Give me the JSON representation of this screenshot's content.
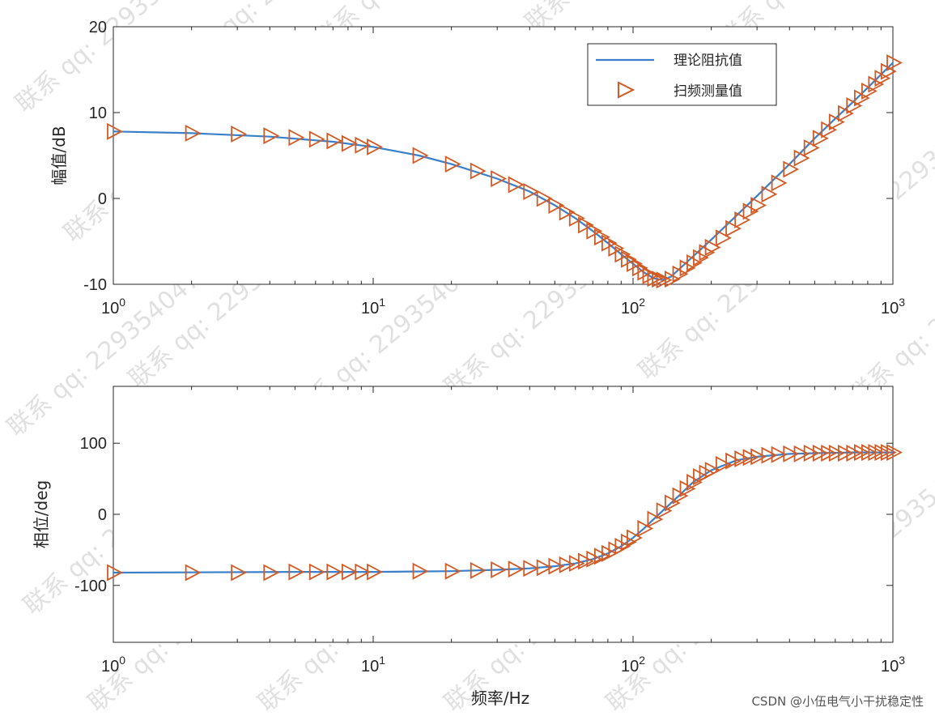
{
  "credit": "CSDN @小伍电气小干扰稳定性",
  "watermark": "联系 qq: 2293540475",
  "colors": {
    "theory": "#3a7fc8",
    "measure": "#d35a24",
    "axis": "#262626"
  },
  "chart_data": [
    {
      "type": "line",
      "ylabel": "幅值/dB",
      "xlabel": "",
      "xscale": "log",
      "xlim": [
        1,
        1000
      ],
      "ylim": [
        -10,
        20
      ],
      "xticks": [
        {
          "v": 1,
          "b": "10",
          "e": "0"
        },
        {
          "v": 10,
          "b": "10",
          "e": "1"
        },
        {
          "v": 100,
          "b": "10",
          "e": "2"
        },
        {
          "v": 1000,
          "b": "10",
          "e": "3"
        }
      ],
      "yticks": [
        {
          "v": 20,
          "t": "20"
        },
        {
          "v": 10,
          "t": "10"
        },
        {
          "v": 0,
          "t": "0"
        },
        {
          "v": -10,
          "t": "-10"
        }
      ],
      "legend": {
        "position": "top-right",
        "entries": [
          "理论阻抗值",
          "扫频测量值"
        ]
      },
      "series": [
        {
          "name": "理论阻抗值",
          "style": "line",
          "x": [
            1,
            2,
            4,
            7,
            10,
            15,
            20,
            30,
            40,
            50,
            60,
            70,
            80,
            90,
            100,
            110,
            120,
            130,
            140,
            160,
            200,
            250,
            300,
            400,
            500,
            600,
            700,
            800,
            1000
          ],
          "y": [
            7.8,
            7.6,
            7.2,
            6.6,
            6.0,
            5.0,
            4.0,
            2.3,
            0.8,
            -0.8,
            -2.3,
            -3.8,
            -5.2,
            -6.5,
            -7.6,
            -8.6,
            -9.3,
            -9.5,
            -9.1,
            -7.5,
            -4.8,
            -2.0,
            0.3,
            4.0,
            7.0,
            9.3,
            11.2,
            12.9,
            15.8
          ]
        },
        {
          "name": "扫频测量值",
          "style": "triangle",
          "x": [
            1,
            2,
            3,
            4,
            5,
            6,
            7,
            8,
            9,
            10,
            15,
            20,
            25,
            30,
            35,
            40,
            45,
            50,
            55,
            60,
            65,
            70,
            75,
            80,
            85,
            90,
            95,
            100,
            105,
            110,
            115,
            120,
            125,
            130,
            140,
            150,
            160,
            170,
            180,
            190,
            200,
            220,
            240,
            260,
            280,
            300,
            330,
            360,
            400,
            440,
            480,
            520,
            560,
            600,
            650,
            700,
            750,
            800,
            850,
            900,
            950,
            1000
          ],
          "y": [
            7.8,
            7.6,
            7.5,
            7.3,
            7.1,
            6.9,
            6.7,
            6.4,
            6.2,
            6.0,
            5.0,
            4.0,
            3.2,
            2.3,
            1.6,
            0.8,
            0.0,
            -0.8,
            -1.6,
            -2.3,
            -3.1,
            -3.8,
            -4.5,
            -5.2,
            -5.8,
            -6.5,
            -7.1,
            -7.6,
            -8.1,
            -8.6,
            -9.0,
            -9.3,
            -9.4,
            -9.5,
            -9.4,
            -8.8,
            -8.1,
            -7.5,
            -6.9,
            -6.3,
            -5.7,
            -4.6,
            -3.5,
            -2.5,
            -1.5,
            -0.8,
            0.5,
            1.8,
            3.4,
            4.7,
            5.9,
            7.0,
            8.0,
            8.9,
            9.9,
            10.8,
            11.7,
            12.5,
            13.3,
            14.0,
            14.8,
            15.8
          ]
        }
      ]
    },
    {
      "type": "line",
      "ylabel": "相位/deg",
      "xlabel": "频率/Hz",
      "xscale": "log",
      "xlim": [
        1,
        1000
      ],
      "ylim": [
        -180,
        180
      ],
      "xticks": [
        {
          "v": 1,
          "b": "10",
          "e": "0"
        },
        {
          "v": 10,
          "b": "10",
          "e": "1"
        },
        {
          "v": 100,
          "b": "10",
          "e": "2"
        },
        {
          "v": 1000,
          "b": "10",
          "e": "3"
        }
      ],
      "yticks": [
        {
          "v": 100,
          "t": "100"
        },
        {
          "v": 0,
          "t": "0"
        },
        {
          "v": -100,
          "t": "-100"
        }
      ],
      "series": [
        {
          "name": "理论阻抗值",
          "style": "line",
          "x": [
            1,
            5,
            10,
            20,
            30,
            40,
            50,
            60,
            70,
            80,
            90,
            100,
            110,
            120,
            130,
            150,
            170,
            200,
            250,
            300,
            400,
            500,
            700,
            1000
          ],
          "y": [
            -82,
            -81,
            -81,
            -80,
            -78,
            -76,
            -73,
            -69,
            -63,
            -55,
            -45,
            -33,
            -20,
            -7,
            5,
            26,
            45,
            62,
            76,
            81,
            85,
            86,
            87,
            87
          ]
        },
        {
          "name": "扫频测量值",
          "style": "triangle",
          "x": [
            1,
            2,
            3,
            4,
            5,
            6,
            7,
            8,
            9,
            10,
            15,
            20,
            25,
            30,
            35,
            40,
            45,
            50,
            55,
            60,
            65,
            70,
            75,
            80,
            85,
            90,
            95,
            100,
            110,
            120,
            130,
            140,
            150,
            160,
            170,
            180,
            190,
            200,
            220,
            240,
            260,
            280,
            300,
            330,
            360,
            400,
            440,
            480,
            520,
            560,
            600,
            650,
            700,
            750,
            800,
            850,
            900,
            950,
            1000
          ],
          "y": [
            -82,
            -82,
            -82,
            -82,
            -81,
            -81,
            -81,
            -81,
            -81,
            -81,
            -80,
            -80,
            -79,
            -78,
            -77,
            -76,
            -75,
            -73,
            -71,
            -69,
            -66,
            -63,
            -59,
            -55,
            -50,
            -45,
            -39,
            -33,
            -20,
            -7,
            5,
            16,
            26,
            36,
            45,
            53,
            58,
            62,
            70,
            75,
            78,
            80,
            81,
            83,
            84,
            85,
            85,
            86,
            86,
            86,
            86,
            86,
            86,
            87,
            87,
            87,
            87,
            87,
            87
          ]
        }
      ]
    }
  ]
}
